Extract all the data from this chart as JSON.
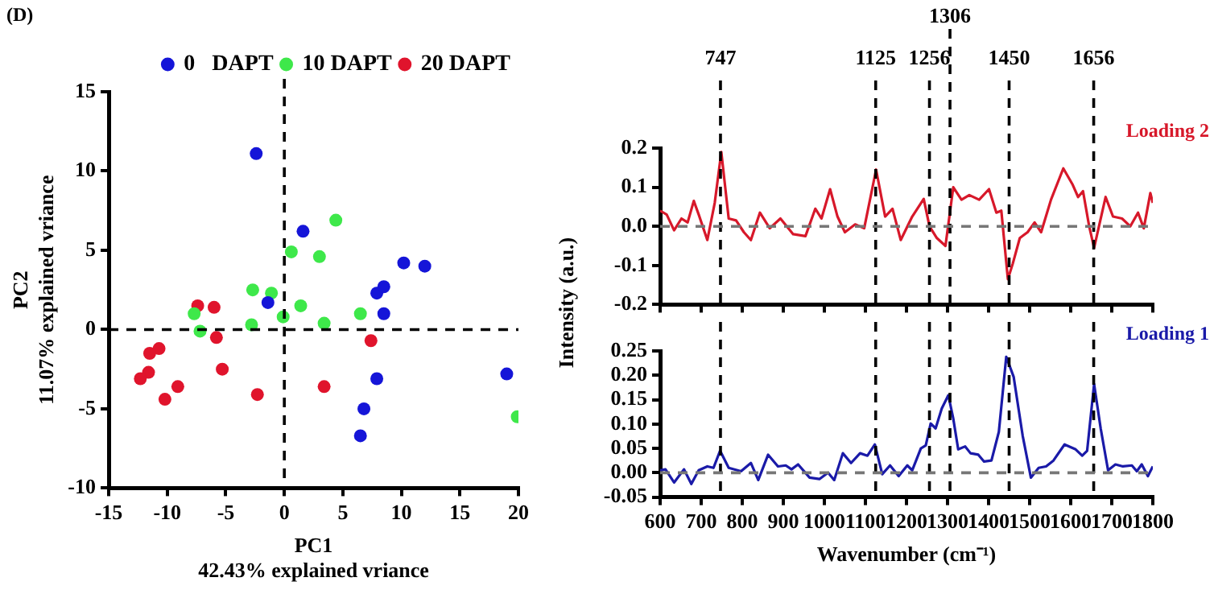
{
  "chart_data": [
    {
      "type": "scatter",
      "xlabel": "PC1\n42.43% explained vriance",
      "ylabel": "PC2\n11.07% explained vriance",
      "annotations": [
        "(D)"
      ],
      "xlim": [
        -15,
        20
      ],
      "ylim": [
        -10,
        15
      ],
      "xticks": [
        -15,
        -10,
        -5,
        0,
        5,
        10,
        15,
        20
      ],
      "yticks": [
        -10,
        -5,
        0,
        5,
        10,
        15
      ],
      "legend": "top right",
      "marker": "circle",
      "ref_lines": [
        {
          "axis": "x",
          "value": 0,
          "color": "#000000",
          "line_style": "dashed"
        },
        {
          "axis": "y",
          "value": 0,
          "color": "#000000",
          "line_style": "dashed"
        }
      ],
      "series": [
        {
          "name": "0   DAPT",
          "color": "#1515d8",
          "x": [
            -2.4,
            -1.4,
            1.6,
            7.9,
            8.5,
            8.5,
            10.2,
            12.0,
            7.9,
            6.8,
            6.5,
            19.0
          ],
          "values": [
            11.1,
            1.7,
            6.2,
            2.3,
            2.7,
            1.0,
            4.2,
            4.0,
            -3.1,
            -5.0,
            -6.7,
            -2.8
          ]
        },
        {
          "name": "10 DAPT",
          "color": "#3ee84a",
          "x": [
            -7.7,
            -7.2,
            -2.7,
            -2.8,
            -1.1,
            -0.1,
            0.6,
            1.4,
            3.0,
            4.4,
            3.4,
            6.5,
            19.9
          ],
          "values": [
            1.0,
            -0.1,
            2.5,
            0.3,
            2.3,
            0.8,
            4.9,
            1.5,
            4.6,
            6.9,
            0.4,
            1.0,
            -5.5
          ]
        },
        {
          "name": "20 DAPT",
          "color": "#e0142c",
          "x": [
            -7.4,
            -6.0,
            -5.8,
            -5.3,
            -10.7,
            -11.5,
            -11.6,
            -12.3,
            -9.1,
            -10.2,
            -2.3,
            3.4,
            7.4
          ],
          "values": [
            1.5,
            1.4,
            -0.5,
            -2.5,
            -1.2,
            -1.5,
            -2.7,
            -3.1,
            -3.6,
            -4.4,
            -4.1,
            -3.6,
            -0.7
          ]
        }
      ]
    },
    {
      "type": "line",
      "xlim": [
        600,
        1800
      ],
      "ylim": [
        -0.2,
        0.2
      ],
      "xticks": [
        600,
        700,
        800,
        900,
        1000,
        1100,
        1200,
        1300,
        1400,
        1500,
        1600,
        1700,
        1800
      ],
      "yticks": [
        {
          "value": -0.2,
          "label": "-0.2"
        },
        {
          "value": -0.1,
          "label": "-0.1"
        },
        {
          "value": 0,
          "label": "0.0"
        },
        {
          "value": 0.1,
          "label": "0.1"
        },
        {
          "value": 0.2,
          "label": "0.2"
        }
      ],
      "tick_labels": "y",
      "marker": "none",
      "line_style": "solid",
      "ref_lines": [
        {
          "axis": "x",
          "value": 747,
          "label": "747",
          "color": "#000000",
          "line_style": "dashed"
        },
        {
          "axis": "x",
          "value": 1125,
          "label": "1125",
          "color": "#000000",
          "line_style": "dashed"
        },
        {
          "axis": "x",
          "value": 1256,
          "label": "1256",
          "color": "#000000",
          "line_style": "dashed"
        },
        {
          "axis": "x",
          "value": 1306,
          "label": "1306",
          "color": "#000000",
          "line_style": "dashed"
        },
        {
          "axis": "x",
          "value": 1450,
          "label": "1450",
          "color": "#000000",
          "line_style": "dashed"
        },
        {
          "axis": "x",
          "value": 1656,
          "label": "1656",
          "color": "#000000",
          "line_style": "dashed"
        },
        {
          "axis": "y",
          "value": 0,
          "color": "#777777",
          "line_style": "dashed"
        }
      ],
      "series": [
        {
          "name": "Loading 2",
          "color": "#d7182a",
          "x": [
            600,
            616,
            634,
            652,
            667,
            682,
            694,
            715,
            733,
            749,
            767,
            785,
            804,
            821,
            843,
            867,
            893,
            924,
            954,
            978,
            993,
            1014,
            1032,
            1050,
            1075,
            1097,
            1126,
            1148,
            1166,
            1186,
            1214,
            1242,
            1256,
            1274,
            1295,
            1314,
            1334,
            1353,
            1377,
            1401,
            1419,
            1431,
            1447,
            1459,
            1476,
            1495,
            1512,
            1528,
            1552,
            1582,
            1604,
            1618,
            1630,
            1645,
            1657,
            1685,
            1703,
            1725,
            1745,
            1764,
            1778,
            1794,
            1800
          ],
          "values": [
            0.04,
            0.03,
            -0.01,
            0.02,
            0.01,
            0.065,
            0.03,
            -0.035,
            0.06,
            0.19,
            0.02,
            0.015,
            -0.015,
            -0.035,
            0.035,
            -0.005,
            0.02,
            -0.02,
            -0.025,
            0.045,
            0.02,
            0.095,
            0.025,
            -0.015,
            0.005,
            -0.005,
            0.145,
            0.025,
            0.045,
            -0.035,
            0.025,
            0.07,
            0.0,
            -0.03,
            -0.05,
            0.1,
            0.068,
            0.08,
            0.068,
            0.095,
            0.035,
            0.04,
            -0.135,
            -0.095,
            -0.03,
            -0.015,
            0.01,
            -0.015,
            0.068,
            0.148,
            0.108,
            0.075,
            0.09,
            0.0,
            -0.055,
            0.075,
            0.025,
            0.02,
            0.0,
            0.035,
            -0.005,
            0.085,
            0.06
          ]
        }
      ]
    },
    {
      "type": "line",
      "xlabel": "Wavenumber (cm⁻¹)",
      "ylabel": "Intensity (a.u.)",
      "xlim": [
        600,
        1800
      ],
      "ylim": [
        -0.05,
        0.25
      ],
      "xticks": [
        600,
        700,
        800,
        900,
        1000,
        1100,
        1200,
        1300,
        1400,
        1500,
        1600,
        1700,
        1800
      ],
      "yticks": [
        {
          "value": -0.05,
          "label": "-0.05"
        },
        {
          "value": 0,
          "label": "0.00"
        },
        {
          "value": 0.05,
          "label": "0.05"
        },
        {
          "value": 0.1,
          "label": "0.10"
        },
        {
          "value": 0.15,
          "label": "0.15"
        },
        {
          "value": 0.2,
          "label": "0.20"
        },
        {
          "value": 0.25,
          "label": "0.25"
        }
      ],
      "marker": "none",
      "line_style": "solid",
      "ref_lines": [
        {
          "axis": "x",
          "value": 747,
          "color": "#000000",
          "line_style": "dashed"
        },
        {
          "axis": "x",
          "value": 1125,
          "color": "#000000",
          "line_style": "dashed"
        },
        {
          "axis": "x",
          "value": 1256,
          "color": "#000000",
          "line_style": "dashed"
        },
        {
          "axis": "x",
          "value": 1306,
          "color": "#000000",
          "line_style": "dashed"
        },
        {
          "axis": "x",
          "value": 1450,
          "color": "#000000",
          "line_style": "dashed"
        },
        {
          "axis": "x",
          "value": 1656,
          "color": "#000000",
          "line_style": "dashed"
        },
        {
          "axis": "y",
          "value": 0,
          "color": "#777777",
          "line_style": "dashed"
        }
      ],
      "series": [
        {
          "name": "Loading 1",
          "color": "#1a1aa8",
          "x": [
            600,
            613,
            634,
            658,
            676,
            694,
            715,
            730,
            746,
            767,
            797,
            821,
            839,
            863,
            887,
            906,
            920,
            936,
            964,
            988,
            1009,
            1024,
            1045,
            1065,
            1087,
            1105,
            1123,
            1141,
            1160,
            1181,
            1202,
            1214,
            1235,
            1247,
            1259,
            1271,
            1286,
            1302,
            1314,
            1326,
            1343,
            1356,
            1375,
            1389,
            1407,
            1425,
            1443,
            1461,
            1483,
            1503,
            1522,
            1540,
            1558,
            1585,
            1612,
            1628,
            1640,
            1657,
            1673,
            1691,
            1709,
            1727,
            1749,
            1761,
            1773,
            1788,
            1800
          ],
          "values": [
            0.005,
            0.007,
            -0.02,
            0.007,
            -0.023,
            0.005,
            0.013,
            0.01,
            0.045,
            0.01,
            0.003,
            0.02,
            -0.015,
            0.037,
            0.013,
            0.015,
            0.007,
            0.017,
            -0.01,
            -0.013,
            0.0,
            -0.015,
            0.04,
            0.02,
            0.04,
            0.035,
            0.058,
            -0.003,
            0.015,
            -0.007,
            0.015,
            0.005,
            0.05,
            0.056,
            0.101,
            0.091,
            0.132,
            0.159,
            0.111,
            0.048,
            0.054,
            0.04,
            0.037,
            0.023,
            0.025,
            0.084,
            0.238,
            0.197,
            0.076,
            -0.01,
            0.01,
            0.013,
            0.025,
            0.058,
            0.048,
            0.035,
            0.045,
            0.182,
            0.091,
            0.005,
            0.017,
            0.013,
            0.015,
            0.003,
            0.017,
            -0.007,
            0.013
          ]
        }
      ]
    }
  ]
}
